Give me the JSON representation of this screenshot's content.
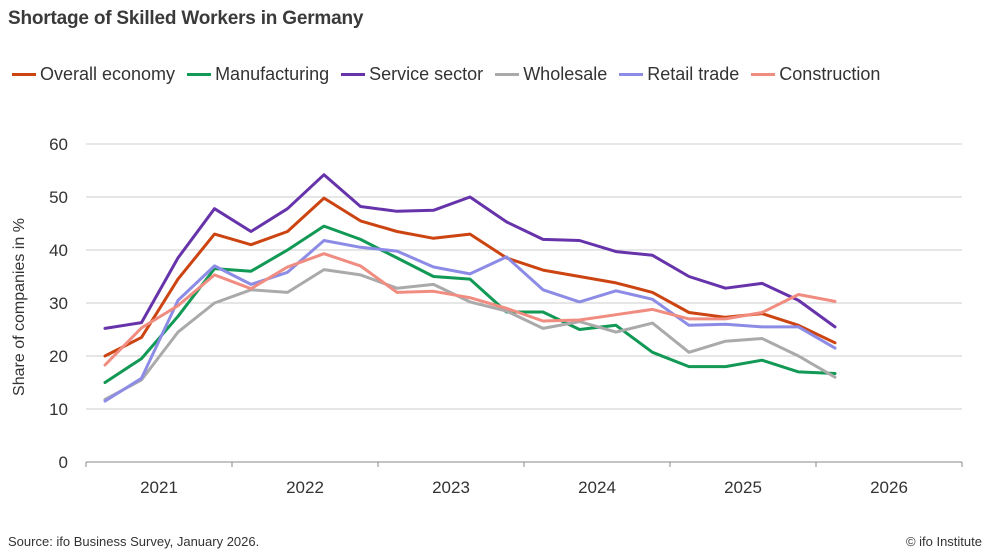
{
  "title": "Shortage of Skilled Workers in Germany",
  "source": "Source: ifo Business Survey, January 2026.",
  "credit": "© ifo Institute",
  "chart_data": {
    "type": "line",
    "ylabel": "Share of companies in %",
    "ylim": [
      0,
      60
    ],
    "yticks": [
      0,
      10,
      20,
      30,
      40,
      50,
      60
    ],
    "xlim": [
      2020.5,
      2026.5
    ],
    "xticks": [
      2021,
      2022,
      2023,
      2024,
      2025,
      2026
    ],
    "grid": "horizontal",
    "legend_position": "top",
    "x": [
      2020.63,
      2020.88,
      2021.13,
      2021.38,
      2021.63,
      2021.88,
      2022.13,
      2022.38,
      2022.63,
      2022.88,
      2023.13,
      2023.38,
      2023.63,
      2023.88,
      2024.13,
      2024.38,
      2024.63,
      2024.88,
      2025.13,
      2025.38,
      2025.63,
      2025.88
    ],
    "series": [
      {
        "name": "Overall economy",
        "color": "#cc4411",
        "values": [
          20,
          23.5,
          34.5,
          43,
          41,
          43.5,
          49.8,
          45.5,
          43.5,
          42.2,
          43,
          38.5,
          36.2,
          35,
          33.8,
          32,
          28.2,
          27.3,
          28,
          25.8,
          22.5,
          null
        ]
      },
      {
        "name": "Manufacturing",
        "color": "#119955",
        "values": [
          15,
          19.5,
          27.5,
          36.5,
          36,
          40,
          44.5,
          42,
          38.5,
          35,
          34.5,
          28.3,
          28.3,
          25,
          25.8,
          20.7,
          18,
          18,
          19.2,
          17,
          16.7,
          null
        ]
      },
      {
        "name": "Service sector",
        "color": "#6633aa",
        "values": [
          25.2,
          26.3,
          38.5,
          47.8,
          43.5,
          47.8,
          54.2,
          48.2,
          47.3,
          47.5,
          50,
          45.3,
          42,
          41.8,
          39.7,
          39,
          35,
          32.8,
          33.7,
          30.5,
          25.5,
          null
        ]
      },
      {
        "name": "Wholesale",
        "color": "#aaaaaa",
        "values": [
          11.8,
          15.5,
          24.5,
          30,
          32.5,
          32,
          36.3,
          35.3,
          32.8,
          33.5,
          30.2,
          28.5,
          25.2,
          26.5,
          24.5,
          26.2,
          20.7,
          22.8,
          23.3,
          20,
          16,
          null
        ]
      },
      {
        "name": "Retail trade",
        "color": "#8c8ce6",
        "values": [
          11.5,
          15.8,
          30.5,
          37,
          33.5,
          35.8,
          41.8,
          40.5,
          39.8,
          36.8,
          35.5,
          38.7,
          32.5,
          30.2,
          32.3,
          30.7,
          25.8,
          26,
          25.5,
          25.5,
          21.5,
          null
        ]
      },
      {
        "name": "Construction",
        "color": "#f08c80",
        "values": [
          18.3,
          25.3,
          29.5,
          35.3,
          32.7,
          36.8,
          39.3,
          37,
          32,
          32.2,
          31,
          29,
          26.6,
          26.8,
          27.8,
          28.8,
          27,
          27,
          28.2,
          31.6,
          30.3,
          null
        ]
      }
    ]
  }
}
